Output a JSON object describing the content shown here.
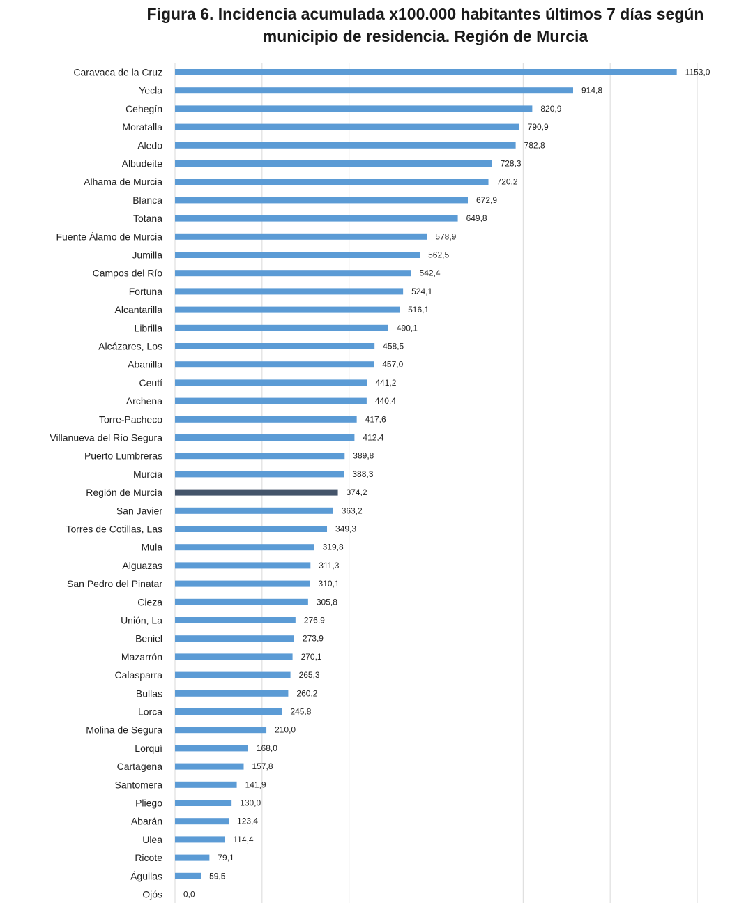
{
  "chart_data": {
    "type": "bar",
    "orientation": "horizontal",
    "title": "Figura 6. Incidencia acumulada x100.000 habitantes últimos 7 días según municipio de residencia. Región de Murcia",
    "title_lines": [
      "Figura 6. Incidencia acumulada  x100.000 habitantes últimos 7 días según",
      "municipio  de residencia. Región de Murcia"
    ],
    "xlabel": "",
    "ylabel": "",
    "xlim": [
      0,
      1200
    ],
    "grid": true,
    "colors": {
      "bar": "#5b9bd5",
      "highlight": "#44546a",
      "grid": "#d9d9d9"
    },
    "highlight_category": "Región de Murcia",
    "categories": [
      "Caravaca de la Cruz",
      "Yecla",
      "Cehegín",
      "Moratalla",
      "Aledo",
      "Albudeite",
      "Alhama de Murcia",
      "Blanca",
      "Totana",
      "Fuente Álamo de Murcia",
      "Jumilla",
      "Campos del Río",
      "Fortuna",
      "Alcantarilla",
      "Librilla",
      "Alcázares, Los",
      "Abanilla",
      "Ceutí",
      "Archena",
      "Torre-Pacheco",
      "Villanueva del Río Segura",
      "Puerto Lumbreras",
      "Murcia",
      "Región de Murcia",
      "San Javier",
      "Torres de Cotillas, Las",
      "Mula",
      "Alguazas",
      "San Pedro del Pinatar",
      "Cieza",
      "Unión, La",
      "Beniel",
      "Mazarrón",
      "Calasparra",
      "Bullas",
      "Lorca",
      "Molina de Segura",
      "Lorquí",
      "Cartagena",
      "Santomera",
      "Pliego",
      "Abarán",
      "Ulea",
      "Ricote",
      "Águilas",
      "Ojós"
    ],
    "values": [
      1153.0,
      914.8,
      820.9,
      790.9,
      782.8,
      728.3,
      720.2,
      672.9,
      649.8,
      578.9,
      562.5,
      542.4,
      524.1,
      516.1,
      490.1,
      458.5,
      457.0,
      441.2,
      440.4,
      417.6,
      412.4,
      389.8,
      388.3,
      374.2,
      363.2,
      349.3,
      319.8,
      311.3,
      310.1,
      305.8,
      276.9,
      273.9,
      270.1,
      265.3,
      260.2,
      245.8,
      210.0,
      168.0,
      157.8,
      141.9,
      130.0,
      123.4,
      114.4,
      79.1,
      59.5,
      0.0
    ],
    "value_labels": [
      "1153,0",
      "914,8",
      "820,9",
      "790,9",
      "782,8",
      "728,3",
      "720,2",
      "672,9",
      "649,8",
      "578,9",
      "562,5",
      "542,4",
      "524,1",
      "516,1",
      "490,1",
      "458,5",
      "457,0",
      "441,2",
      "440,4",
      "417,6",
      "412,4",
      "389,8",
      "388,3",
      "374,2",
      "363,2",
      "349,3",
      "319,8",
      "311,3",
      "310,1",
      "305,8",
      "276,9",
      "273,9",
      "270,1",
      "265,3",
      "260,2",
      "245,8",
      "210,0",
      "168,0",
      "157,8",
      "141,9",
      "130,0",
      "123,4",
      "114,4",
      "79,1",
      "59,5",
      "0,0"
    ]
  }
}
